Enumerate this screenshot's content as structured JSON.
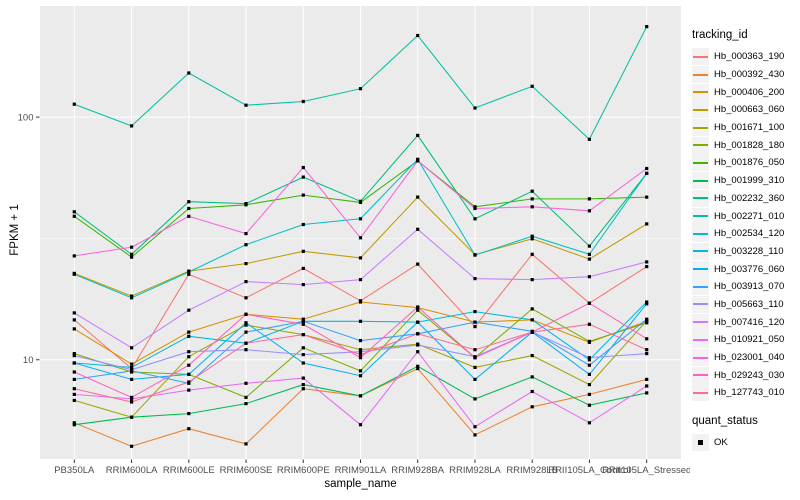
{
  "figure": {
    "legend": {
      "tracking_title": "tracking_id",
      "quant_title": "quant_status",
      "quant_items": [
        {
          "label": "OK"
        }
      ]
    },
    "colors": {
      "panel_bg": "#EBEBEB",
      "grid": "#FFFFFF",
      "point": "#000000",
      "axis_text": "#4D4D4D",
      "tick_mark": "#333333",
      "legend_key_bg": "#F2F2F2"
    }
  },
  "chart_data": {
    "type": "line",
    "title": "",
    "xlabel": "sample_name",
    "ylabel": "FPKM + 1",
    "y_scale": "log10",
    "y_ticks": [
      10,
      100
    ],
    "y_minor_ticks": [
      31.6
    ],
    "ylim": [
      3.9,
      287
    ],
    "grid": "on",
    "legend_position": "right",
    "point_marker": "black-square (quant_status = OK at every point)",
    "x_categories": [
      "PB350LA",
      "RRIM600LA",
      "RRIM600LE",
      "RRIM600SE",
      "RRIM600PE",
      "RRIM901LA",
      "RRIM928BA",
      "RRIM928LA",
      "RRIM928LB",
      "RRII105LA_Control",
      "RRII105LA_Stressed"
    ],
    "values_note": "FPKM + 1, approximate values read from log-scale plot",
    "series": [
      {
        "name": "Hb_000363_190",
        "color": "#F8766D",
        "values": [
          14.6,
          9.2,
          22.5,
          18.0,
          23.8,
          17.5,
          24.8,
          13.7,
          27.2,
          17.1,
          24.2
        ]
      },
      {
        "name": "Hb_000392_430",
        "color": "#EA8331",
        "values": [
          5.5,
          4.4,
          5.2,
          4.5,
          7.6,
          7.1,
          9.2,
          4.9,
          6.4,
          7.2,
          8.3
        ]
      },
      {
        "name": "Hb_000406_200",
        "color": "#D89000",
        "values": [
          13.4,
          9.6,
          13.0,
          15.4,
          14.7,
          17.3,
          16.4,
          14.3,
          14.6,
          11.8,
          14.4
        ]
      },
      {
        "name": "Hb_000663_060",
        "color": "#C09B00",
        "values": [
          22.7,
          18.3,
          23.2,
          24.9,
          28.0,
          26.3,
          46.8,
          27.1,
          31.5,
          26.0,
          36.3
        ]
      },
      {
        "name": "Hb_001671_100",
        "color": "#A3A500",
        "values": [
          6.8,
          5.8,
          10.3,
          13.9,
          12.7,
          11.0,
          11.6,
          9.3,
          10.4,
          7.9,
          14.5
        ]
      },
      {
        "name": "Hb_001828_180",
        "color": "#7CAE00",
        "values": [
          10.6,
          8.9,
          8.7,
          7.0,
          11.2,
          9.0,
          16.0,
          10.2,
          16.2,
          11.9,
          14.2
        ]
      },
      {
        "name": "Hb_001876_050",
        "color": "#39B600",
        "values": [
          39.0,
          26.5,
          42.0,
          43.5,
          47.7,
          44.5,
          66.0,
          42.7,
          46.0,
          46.0,
          46.8
        ]
      },
      {
        "name": "Hb_001999_310",
        "color": "#00BB4E",
        "values": [
          5.4,
          5.8,
          6.0,
          6.6,
          7.9,
          7.1,
          9.4,
          6.9,
          8.5,
          6.5,
          7.3
        ]
      },
      {
        "name": "Hb_002232_360",
        "color": "#00BF7D",
        "values": [
          40.7,
          27.2,
          44.8,
          44.0,
          56.6,
          45.0,
          84.1,
          38.1,
          49.5,
          29.4,
          58.6
        ]
      },
      {
        "name": "Hb_002271_010",
        "color": "#00C1A3",
        "values": [
          113,
          92,
          152,
          112,
          116,
          131,
          217,
          109,
          134,
          81,
          236
        ]
      },
      {
        "name": "Hb_002534_120",
        "color": "#00BFC4",
        "values": [
          22.5,
          18.0,
          23.0,
          29.8,
          36.1,
          38.1,
          67.0,
          27.0,
          32.3,
          27.2,
          58.6
        ]
      },
      {
        "name": "Hb_003228_110",
        "color": "#00BADE",
        "values": [
          9.7,
          9.3,
          12.5,
          11.7,
          14.4,
          14.4,
          14.3,
          15.8,
          14.6,
          10.0,
          17.3
        ]
      },
      {
        "name": "Hb_003776_060",
        "color": "#00B0F6",
        "values": [
          9.7,
          8.3,
          8.7,
          14.2,
          9.7,
          8.6,
          14.3,
          8.3,
          13.0,
          8.7,
          17.0
        ]
      },
      {
        "name": "Hb_003913_070",
        "color": "#35A2FF",
        "values": [
          8.3,
          9.0,
          8.0,
          13.0,
          14.4,
          12.0,
          12.8,
          14.3,
          13.1,
          9.5,
          14.7
        ]
      },
      {
        "name": "Hb_005663_110",
        "color": "#9590FF",
        "values": [
          10.4,
          9.1,
          10.8,
          11.0,
          10.5,
          10.8,
          11.5,
          10.3,
          13.0,
          10.2,
          10.6
        ]
      },
      {
        "name": "Hb_007416_120",
        "color": "#C77CFF",
        "values": [
          15.6,
          11.2,
          16.0,
          21.0,
          20.4,
          21.4,
          34.5,
          21.6,
          21.4,
          22.0,
          25.3
        ]
      },
      {
        "name": "Hb_010921_050",
        "color": "#E76BF3",
        "values": [
          7.2,
          6.9,
          7.5,
          8.0,
          8.4,
          5.4,
          10.8,
          5.3,
          7.4,
          5.5,
          7.8
        ]
      },
      {
        "name": "Hb_023001_040",
        "color": "#FA62DB",
        "values": [
          26.8,
          29.1,
          39.0,
          33.1,
          62.0,
          31.8,
          66.0,
          42.0,
          42.7,
          41.1,
          61.4
        ]
      },
      {
        "name": "Hb_029243_030",
        "color": "#FF62BC",
        "values": [
          8.9,
          7.0,
          9.5,
          15.4,
          14.0,
          10.2,
          16.5,
          10.2,
          13.0,
          17.1,
          12.2
        ]
      },
      {
        "name": "Hb_127743_010",
        "color": "#FF6A98",
        "values": [
          7.6,
          6.7,
          8.1,
          11.7,
          12.7,
          10.5,
          12.8,
          11.0,
          13.0,
          14.0,
          11.0
        ]
      }
    ]
  }
}
